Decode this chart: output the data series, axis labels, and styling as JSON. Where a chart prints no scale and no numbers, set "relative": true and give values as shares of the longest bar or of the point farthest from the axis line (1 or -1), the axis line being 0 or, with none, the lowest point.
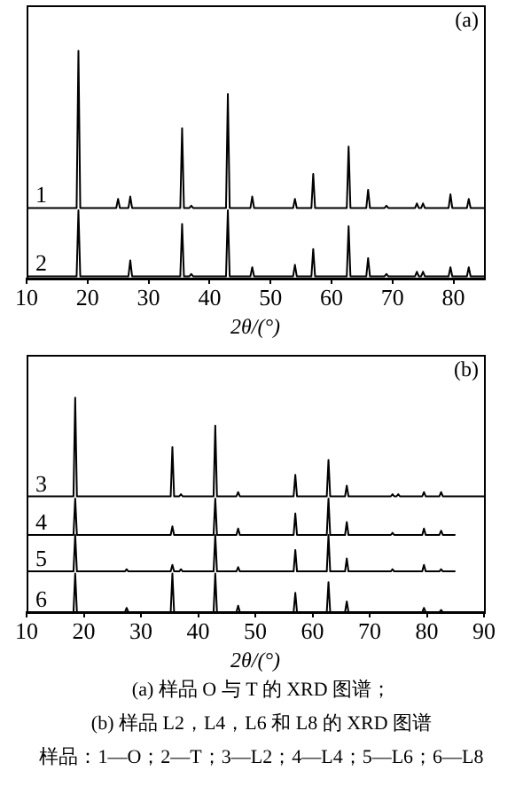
{
  "chart_data": [
    {
      "type": "line",
      "relative": true,
      "xlabel": "2θ/(°)",
      "xlim": [
        10,
        85
      ],
      "xticks": [
        10,
        20,
        30,
        40,
        50,
        60,
        70,
        80
      ],
      "grid": false,
      "legend": false,
      "marker": "none",
      "line_style": "solid",
      "annotations": [
        "(a)",
        "(a) 样品 O 与 T 的 XRD 图谱；"
      ],
      "series": [
        {
          "name": "1",
          "color": "#000000",
          "x": [
            10,
            18.2,
            18.5,
            18.8,
            24.7,
            25,
            25.3,
            26.7,
            27,
            27.3,
            35.2,
            35.5,
            35.8,
            36.7,
            37,
            37.3,
            42.7,
            43,
            43.3,
            46.7,
            47,
            47.3,
            53.7,
            54,
            54.3,
            56.7,
            57,
            57.3,
            62.5,
            62.8,
            63.1,
            65.7,
            66,
            66.3,
            68.7,
            69,
            69.3,
            73.7,
            74,
            74.3,
            74.7,
            75,
            75.3,
            79.2,
            79.5,
            79.8,
            82.2,
            82.5,
            82.8,
            85
          ],
          "values": [
            0.31,
            0.31,
            1,
            0.31,
            0.31,
            0.35,
            0.31,
            0.31,
            0.36,
            0.31,
            0.31,
            0.66,
            0.31,
            0.31,
            0.32,
            0.31,
            0.31,
            0.81,
            0.31,
            0.31,
            0.36,
            0.31,
            0.31,
            0.35,
            0.31,
            0.31,
            0.46,
            0.31,
            0.31,
            0.58,
            0.31,
            0.31,
            0.39,
            0.31,
            0.31,
            0.32,
            0.31,
            0.31,
            0.33,
            0.31,
            0.31,
            0.33,
            0.31,
            0.31,
            0.37,
            0.31,
            0.31,
            0.35,
            0.31,
            0.31
          ]
        },
        {
          "name": "2",
          "color": "#000000",
          "x": [
            10,
            18.2,
            18.5,
            18.8,
            26.7,
            27,
            27.3,
            35.2,
            35.5,
            35.8,
            36.7,
            37,
            37.3,
            42.7,
            43,
            43.3,
            46.7,
            47,
            47.3,
            53.7,
            54,
            54.3,
            56.7,
            57,
            57.3,
            62.5,
            62.8,
            63.1,
            65.7,
            66,
            66.3,
            68.7,
            69,
            69.3,
            73.7,
            74,
            74.3,
            74.7,
            75,
            75.3,
            79.2,
            79.5,
            79.8,
            82.2,
            82.5,
            82.8,
            85
          ],
          "values": [
            0.01,
            0.01,
            0.3,
            0.01,
            0.01,
            0.08,
            0.01,
            0.01,
            0.24,
            0.01,
            0.01,
            0.02,
            0.01,
            0.01,
            0.3,
            0.01,
            0.01,
            0.05,
            0.01,
            0.01,
            0.06,
            0.01,
            0.01,
            0.13,
            0.01,
            0.01,
            0.23,
            0.01,
            0.01,
            0.09,
            0.01,
            0.01,
            0.02,
            0.01,
            0.01,
            0.03,
            0.01,
            0.01,
            0.03,
            0.01,
            0.01,
            0.05,
            0.01,
            0.01,
            0.05,
            0.01,
            0.01
          ]
        }
      ]
    },
    {
      "type": "line",
      "relative": true,
      "xlabel": "2θ/(°)",
      "xlim": [
        10,
        90
      ],
      "xticks": [
        10,
        20,
        30,
        40,
        50,
        60,
        70,
        80,
        90
      ],
      "grid": false,
      "legend": false,
      "marker": "none",
      "line_style": "solid",
      "annotations": [
        "(b)",
        "(b) 样品 L2，L4，L6 和 L8 的 XRD 图谱",
        "样品：1—O；2—T；3—L2；4—L4；5—L6；6—L8"
      ],
      "series": [
        {
          "name": "3",
          "color": "#000000",
          "x": [
            10,
            18.2,
            18.5,
            18.8,
            35.2,
            35.5,
            35.8,
            36.7,
            37,
            37.3,
            42.7,
            43,
            43.3,
            46.7,
            47,
            47.3,
            56.7,
            57,
            57.3,
            62.5,
            62.8,
            63.1,
            65.7,
            66,
            66.3,
            73.7,
            74,
            74.3,
            74.7,
            75,
            75.3,
            79.2,
            79.5,
            79.8,
            82.2,
            82.5,
            82.8,
            90
          ],
          "values": [
            0.54,
            0.54,
            1,
            0.54,
            0.54,
            0.77,
            0.54,
            0.54,
            0.55,
            0.54,
            0.54,
            0.87,
            0.54,
            0.54,
            0.56,
            0.54,
            0.54,
            0.64,
            0.54,
            0.54,
            0.71,
            0.54,
            0.54,
            0.59,
            0.54,
            0.54,
            0.55,
            0.54,
            0.54,
            0.55,
            0.54,
            0.54,
            0.56,
            0.54,
            0.54,
            0.56,
            0.54,
            0.54
          ]
        },
        {
          "name": "4",
          "color": "#000000",
          "x": [
            10,
            18.2,
            18.5,
            18.8,
            35.2,
            35.5,
            35.8,
            42.7,
            43,
            43.3,
            46.7,
            47,
            47.3,
            56.7,
            57,
            57.3,
            62.5,
            62.8,
            63.1,
            65.7,
            66,
            66.3,
            73.7,
            74,
            74.3,
            79.2,
            79.5,
            79.8,
            82.2,
            82.5,
            82.8,
            85
          ],
          "values": [
            0.36,
            0.36,
            0.53,
            0.36,
            0.36,
            0.4,
            0.36,
            0.36,
            0.53,
            0.36,
            0.36,
            0.39,
            0.36,
            0.36,
            0.46,
            0.36,
            0.36,
            0.53,
            0.36,
            0.36,
            0.42,
            0.36,
            0.36,
            0.37,
            0.36,
            0.36,
            0.39,
            0.36,
            0.36,
            0.38,
            0.36,
            0.36
          ]
        },
        {
          "name": "5",
          "color": "#000000",
          "x": [
            10,
            18.2,
            18.5,
            18.8,
            27.2,
            27.5,
            27.8,
            35.2,
            35.5,
            35.8,
            36.7,
            37,
            37.3,
            42.7,
            43,
            43.3,
            46.7,
            47,
            47.3,
            56.7,
            57,
            57.3,
            62.5,
            62.8,
            63.1,
            65.7,
            66,
            66.3,
            73.7,
            74,
            74.3,
            79.2,
            79.5,
            79.8,
            82.2,
            82.5,
            82.8,
            85
          ],
          "values": [
            0.19,
            0.19,
            0.36,
            0.19,
            0.19,
            0.2,
            0.19,
            0.19,
            0.22,
            0.19,
            0.19,
            0.2,
            0.19,
            0.19,
            0.36,
            0.19,
            0.19,
            0.21,
            0.19,
            0.19,
            0.29,
            0.19,
            0.19,
            0.36,
            0.19,
            0.19,
            0.25,
            0.19,
            0.19,
            0.2,
            0.19,
            0.19,
            0.22,
            0.19,
            0.19,
            0.2,
            0.19,
            0.19
          ]
        },
        {
          "name": "6",
          "color": "#000000",
          "x": [
            10,
            18.2,
            18.5,
            18.8,
            27.2,
            27.5,
            27.8,
            35.2,
            35.5,
            35.8,
            42.7,
            43,
            43.3,
            46.7,
            47,
            47.3,
            56.7,
            57,
            57.3,
            62.5,
            62.8,
            63.1,
            65.7,
            66,
            66.3,
            79.2,
            79.5,
            79.8,
            82.2,
            82.5,
            82.8,
            90
          ],
          "values": [
            0,
            0,
            0.18,
            0,
            0,
            0.02,
            0,
            0,
            0.18,
            0,
            0,
            0.18,
            0,
            0,
            0.03,
            0,
            0,
            0.09,
            0,
            0,
            0.14,
            0,
            0,
            0.05,
            0,
            0,
            0.02,
            0,
            0,
            0.01,
            0,
            0
          ]
        }
      ]
    }
  ]
}
